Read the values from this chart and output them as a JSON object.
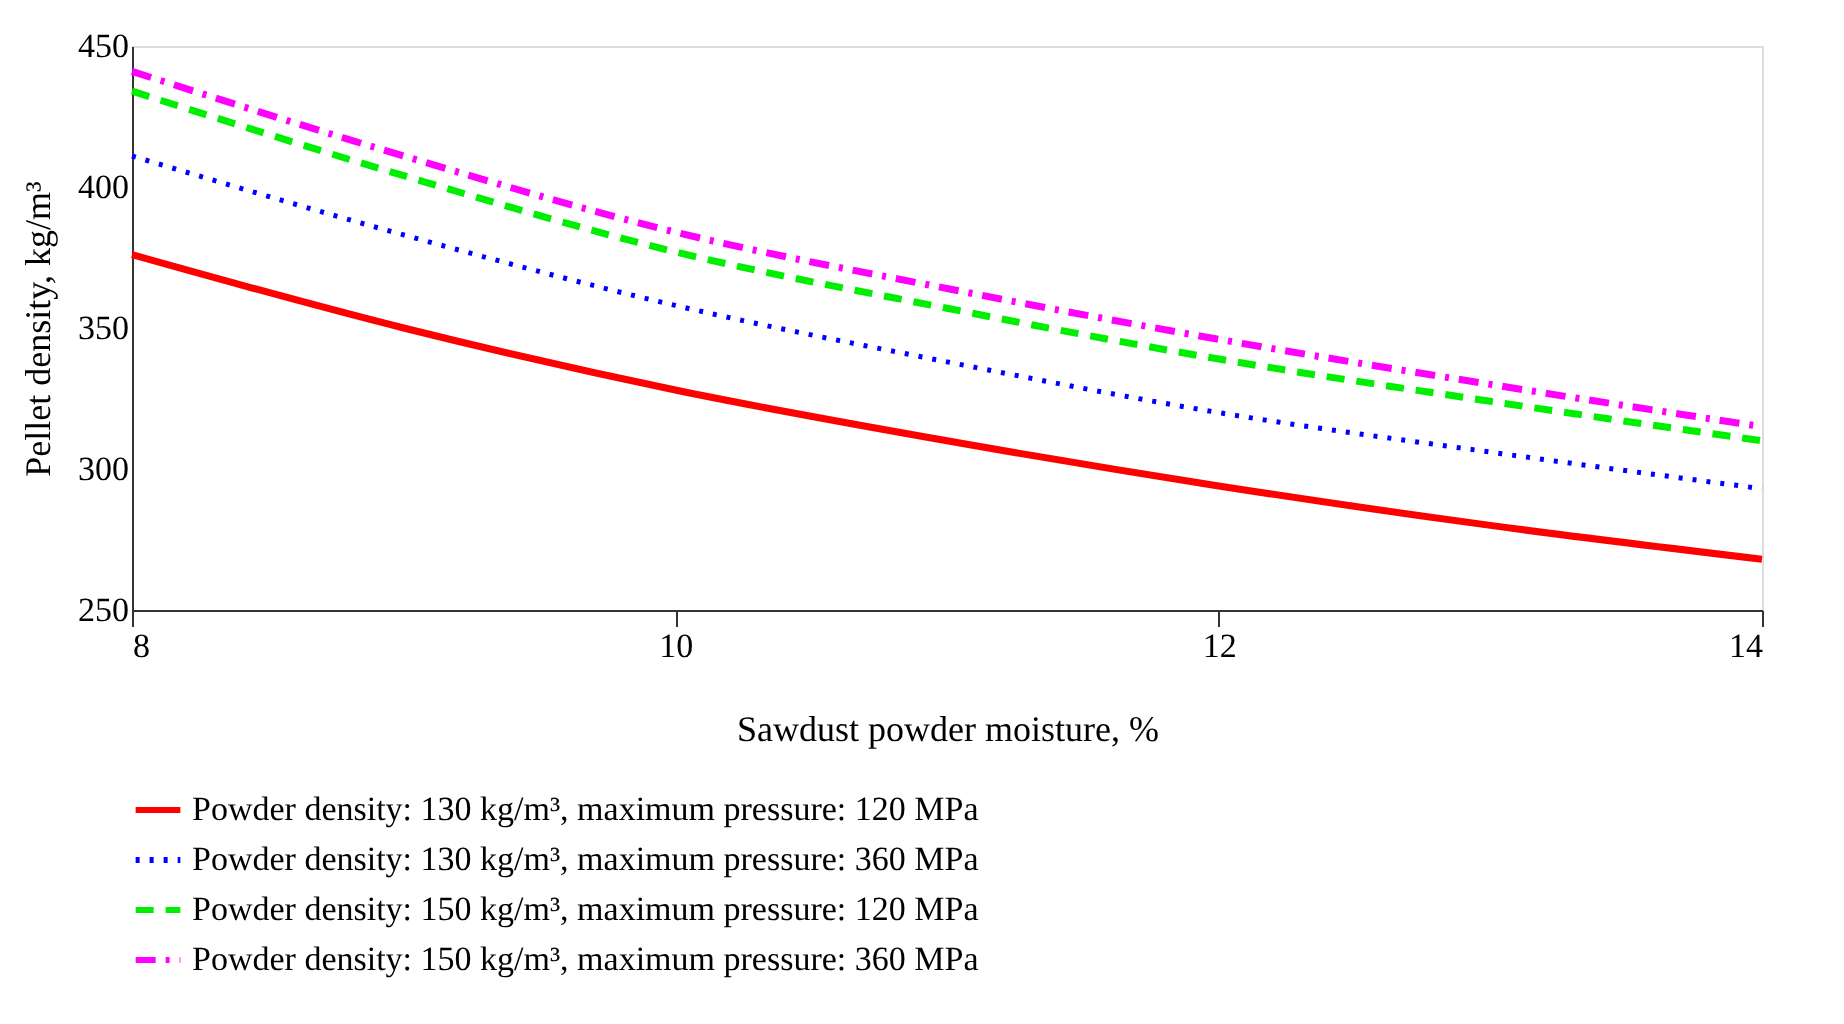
{
  "chart_data": {
    "type": "line",
    "xlabel": "Sawdust powder moisture, %",
    "ylabel": "Pellet density, kg/m³",
    "x": [
      8,
      9,
      10,
      11,
      12,
      13,
      14
    ],
    "series": [
      {
        "name": "Powder density: 130 kg/m³, maximum pressure: 120 MPa",
        "color": "#ff0000",
        "line_style": "solid",
        "values": [
          376,
          350,
          328,
          310,
          294,
          280,
          268
        ]
      },
      {
        "name": "Powder density: 130 kg/m³, maximum pressure: 360 MPa",
        "color": "#0000ff",
        "line_style": "dotted",
        "values": [
          411,
          383,
          358,
          338,
          320,
          306,
          293
        ]
      },
      {
        "name": "Powder density: 150 kg/m³, maximum pressure: 120 MPa",
        "color": "#00ee00",
        "line_style": "dashed",
        "values": [
          434,
          404,
          377,
          357,
          339,
          324,
          310
        ]
      },
      {
        "name": "Powder density: 150 kg/m³, maximum pressure: 360 MPa",
        "color": "#ff00ff",
        "line_style": "dashdot",
        "values": [
          441,
          411,
          384,
          364,
          346,
          330,
          315
        ]
      }
    ],
    "xlim": [
      8,
      14
    ],
    "xticks": [
      8,
      10,
      12,
      14
    ],
    "ylim": [
      250,
      450
    ],
    "yticks": [
      250,
      300,
      350,
      400,
      450
    ],
    "grid": false,
    "legend": "bottom",
    "marker": "none"
  }
}
